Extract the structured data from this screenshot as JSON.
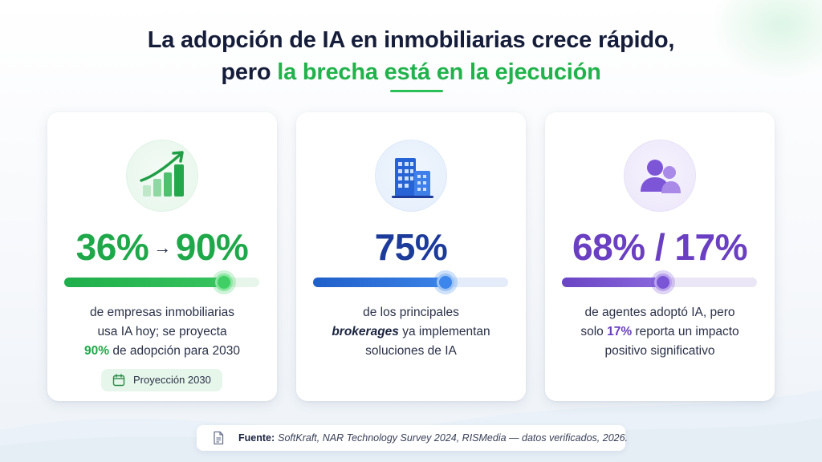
{
  "title": {
    "line1": "La adopción de IA en inmobiliarias crece rápido,",
    "line2_prefix": "pero ",
    "line2_accent": "la brecha está en la ejecución"
  },
  "colors": {
    "green": "#1fa84a",
    "blue": "#1c3b9a",
    "purple": "#6a3fc2"
  },
  "cards": [
    {
      "icon": "growth-bar-chart-icon",
      "stat_start": "36%",
      "stat_arrow": "→",
      "stat_end": "90%",
      "progress": 0.82,
      "desc_line1": "de empresas inmobiliarias",
      "desc_line2": "usa IA hoy; se proyecta",
      "desc_line3_highlight": "90%",
      "desc_line3_rest": " de adopción para 2030",
      "badge_icon": "calendar-icon",
      "badge_label": "Proyección 2030"
    },
    {
      "icon": "office-building-icon",
      "stat": "75%",
      "progress": 0.68,
      "desc_line1": "de los principales",
      "desc_line2_highlight": "brokerages",
      "desc_line2_rest": " ya implementan",
      "desc_line3": "soluciones de IA"
    },
    {
      "icon": "users-icon",
      "stat": "68% / 17%",
      "progress": 0.52,
      "desc_line1": "de agentes adoptó IA, pero",
      "desc_line2_prefix": "solo ",
      "desc_line2_highlight": "17%",
      "desc_line2_rest": " reporta un impacto",
      "desc_line3": "positivo significativo"
    }
  ],
  "source": {
    "icon": "document-icon",
    "label": "Fuente:",
    "text": "SoftKraft, NAR Technology Survey 2024, RISMedia — datos verificados, 2026."
  }
}
